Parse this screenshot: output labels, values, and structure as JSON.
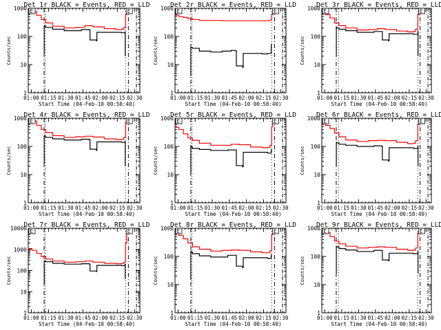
{
  "figure": {
    "title": "HESSI detector light curves, 3x3 panel grid"
  },
  "chart_data": [
    {
      "type": "line",
      "title": "Det 1r BLACK = Events, RED = LLD",
      "xlabel": "Start Time (04-Feb-10 00:58:40)",
      "ylabel": "Counts/sec",
      "yscale": "log",
      "ylim": [
        1,
        1000
      ],
      "yticks": [
        "1",
        "10",
        "100",
        "1000"
      ],
      "xlim_min": [
        -1.33,
        96
      ],
      "xticks": [
        "01:00",
        "01:15",
        "01:30",
        "01:45",
        "02:00",
        "02:15",
        "02:30"
      ],
      "xtick_min": [
        1.33,
        16.33,
        31.33,
        46.33,
        61.33,
        76.33,
        91.33
      ],
      "markers": {
        "dashdot": [
          12.5,
          86
        ],
        "dotted": [
          13.5,
          83.5
        ],
        "dashdot_right": 93
      },
      "annotations": [
        "E",
        "E"
      ],
      "series": [
        {
          "name": "LLD",
          "color": "#ff0000",
          "x": [
            -1.33,
            2,
            6,
            10,
            14,
            20,
            30,
            40,
            48,
            55,
            65,
            75,
            80,
            82,
            83.5,
            84.5
          ],
          "y": [
            1000,
            760,
            560,
            400,
            300,
            230,
            200,
            210,
            240,
            220,
            190,
            175,
            180,
            210,
            600,
            1000
          ]
        },
        {
          "name": "Events",
          "color": "#000000",
          "x": [
            12.5,
            12.6,
            13,
            14,
            20,
            30,
            45,
            52,
            52.5,
            58,
            58.5,
            80,
            83,
            83.2
          ],
          "y": [
            25,
            240,
            230,
            210,
            180,
            160,
            175,
            170,
            75,
            70,
            140,
            135,
            145,
            20
          ]
        }
      ]
    },
    {
      "type": "line",
      "title": "Det 2r BLACK = Events, RED = LLD",
      "xlabel": "Start Time (04-Feb-10 00:58:40)",
      "ylabel": "Counts/sec",
      "yscale": "log",
      "ylim": [
        1,
        1000
      ],
      "yticks": [
        "1",
        "10",
        "100",
        "1000"
      ],
      "xlim_min": [
        -1.33,
        96
      ],
      "xticks": [
        "01:00",
        "01:15",
        "01:30",
        "01:45",
        "02:00",
        "02:15",
        "02:30"
      ],
      "xtick_min": [
        1.33,
        16.33,
        31.33,
        46.33,
        61.33,
        76.33,
        91.33
      ],
      "markers": {
        "dashdot": [
          12.5,
          86
        ],
        "dotted": [
          13.5,
          83.5
        ],
        "dashdot_right": 93
      },
      "annotations": [
        "E",
        "E"
      ],
      "series": [
        {
          "name": "LLD",
          "color": "#ff0000",
          "x": [
            -1.33,
            2,
            6,
            10,
            14,
            20,
            40,
            60,
            80,
            82,
            83.5,
            84.5
          ],
          "y": [
            560,
            500,
            470,
            430,
            400,
            370,
            360,
            360,
            360,
            380,
            600,
            1000
          ]
        },
        {
          "name": "Events",
          "color": "#000000",
          "x": [
            12.2,
            12.5,
            13,
            14,
            20,
            30,
            40,
            48,
            52,
            52.5,
            58,
            58.5,
            75,
            80,
            83,
            83.2
          ],
          "y": [
            4,
            40,
            40,
            38,
            30,
            28,
            30,
            32,
            30,
            9,
            8,
            25,
            24,
            25,
            40,
            55
          ]
        }
      ]
    },
    {
      "type": "line",
      "title": "Det 3r BLACK = Events, RED = LLD",
      "xlabel": "Start Time (04-Feb-10 00:58:40)",
      "ylabel": "Counts/sec",
      "yscale": "log",
      "ylim": [
        1,
        1000
      ],
      "yticks": [
        "1",
        "10",
        "100",
        "1000"
      ],
      "xlim_min": [
        -1.33,
        96
      ],
      "xticks": [
        "01:00",
        "01:15",
        "01:30",
        "01:45",
        "02:00",
        "02:15",
        "02:30"
      ],
      "xtick_min": [
        1.33,
        16.33,
        31.33,
        46.33,
        61.33,
        76.33,
        91.33
      ],
      "markers": {
        "dashdot": [
          11.5,
          86
        ],
        "dotted": [
          13.5,
          84
        ],
        "dashdot_right": 93
      },
      "annotations": [
        "E",
        "E"
      ],
      "series": [
        {
          "name": "LLD",
          "color": "#ff0000",
          "x": [
            -1.33,
            2,
            6,
            10,
            14,
            20,
            30,
            40,
            48,
            55,
            65,
            75,
            80,
            82,
            84,
            85
          ],
          "y": [
            700,
            600,
            450,
            300,
            240,
            200,
            170,
            175,
            190,
            175,
            155,
            145,
            150,
            180,
            600,
            1000
          ]
        },
        {
          "name": "Events",
          "color": "#000000",
          "x": [
            11.5,
            11.6,
            12,
            14,
            20,
            30,
            45,
            52,
            52.5,
            58,
            58.5,
            80,
            84,
            84.2
          ],
          "y": [
            20,
            210,
            200,
            180,
            160,
            140,
            150,
            150,
            75,
            70,
            125,
            120,
            150,
            20
          ]
        }
      ]
    },
    {
      "type": "line",
      "title": "Det 4r BLACK = Events, RED = LLD",
      "xlabel": "Start Time (04-Feb-10 00:58:40)",
      "ylabel": "Counts/sec",
      "yscale": "log",
      "ylim": [
        1,
        1000
      ],
      "yticks": [
        "1",
        "10",
        "100",
        "1000"
      ],
      "xlim_min": [
        -1.33,
        96
      ],
      "xticks": [
        "01:00",
        "01:15",
        "01:30",
        "01:45",
        "02:00",
        "02:15",
        "02:30"
      ],
      "xtick_min": [
        1.33,
        16.33,
        31.33,
        46.33,
        61.33,
        76.33,
        91.33
      ],
      "markers": {
        "dashdot": [
          12.5,
          86
        ],
        "dotted": [
          13.5,
          83.5
        ],
        "dashdot_right": 93
      },
      "annotations": [
        "E",
        "E"
      ],
      "series": [
        {
          "name": "LLD",
          "color": "#ff0000",
          "x": [
            -1.33,
            2,
            6,
            10,
            14,
            20,
            30,
            40,
            48,
            55,
            65,
            75,
            80,
            82,
            83.5,
            84.5
          ],
          "y": [
            1000,
            800,
            560,
            400,
            310,
            240,
            210,
            220,
            230,
            215,
            185,
            175,
            180,
            210,
            700,
            1000
          ]
        },
        {
          "name": "Events",
          "color": "#000000",
          "x": [
            12.5,
            12.6,
            13,
            14,
            20,
            30,
            45,
            52,
            52.5,
            58,
            58.5,
            80,
            83,
            83.2
          ],
          "y": [
            25,
            240,
            230,
            210,
            185,
            170,
            180,
            175,
            80,
            72,
            145,
            140,
            150,
            20
          ]
        }
      ]
    },
    {
      "type": "line",
      "title": "Det 5r BLACK = Events, RED = LLD",
      "xlabel": "Start Time (04-Feb-10 00:58:40)",
      "ylabel": "Counts/sec",
      "yscale": "log",
      "ylim": [
        1,
        1000
      ],
      "yticks": [
        "1",
        "10",
        "100",
        "1000"
      ],
      "xlim_min": [
        -1.33,
        96
      ],
      "xticks": [
        "01:00",
        "01:15",
        "01:30",
        "01:45",
        "02:00",
        "02:15",
        "02:30"
      ],
      "xtick_min": [
        1.33,
        16.33,
        31.33,
        46.33,
        61.33,
        76.33,
        91.33
      ],
      "markers": {
        "dashdot": [
          12.5,
          86
        ],
        "dotted": [
          13.5,
          83.5
        ],
        "dashdot_right": 93
      },
      "annotations": [
        "E",
        "E"
      ],
      "series": [
        {
          "name": "LLD",
          "color": "#ff0000",
          "x": [
            -1.33,
            2,
            6,
            10,
            14,
            20,
            30,
            40,
            48,
            55,
            65,
            75,
            80,
            82,
            83.5,
            84.5
          ],
          "y": [
            480,
            400,
            280,
            200,
            165,
            130,
            110,
            110,
            120,
            115,
            95,
            90,
            92,
            110,
            500,
            1000
          ]
        },
        {
          "name": "Events",
          "color": "#000000",
          "x": [
            12.2,
            12.5,
            13,
            14,
            20,
            30,
            45,
            52,
            52.5,
            58,
            58.5,
            80,
            83,
            83.2
          ],
          "y": [
            12,
            100,
            95,
            85,
            78,
            72,
            75,
            75,
            21,
            19,
            62,
            58,
            65,
            80
          ]
        }
      ]
    },
    {
      "type": "line",
      "title": "Det 6r BLACK = Events, RED = LLD",
      "xlabel": "Start Time (04-Feb-10 00:58:40)",
      "ylabel": "Counts/sec",
      "yscale": "log",
      "ylim": [
        1,
        1000
      ],
      "yticks": [
        "1",
        "10",
        "100",
        "1000"
      ],
      "xlim_min": [
        -1.33,
        96
      ],
      "xticks": [
        "01:00",
        "01:15",
        "01:30",
        "01:45",
        "02:00",
        "02:15",
        "02:30"
      ],
      "xtick_min": [
        1.33,
        16.33,
        31.33,
        46.33,
        61.33,
        76.33,
        91.33
      ],
      "markers": {
        "dashdot": [
          11.5,
          86
        ],
        "dotted": [
          13.5,
          84
        ],
        "dashdot_right": 93
      },
      "annotations": [
        "E",
        "E"
      ],
      "series": [
        {
          "name": "LLD",
          "color": "#ff0000",
          "x": [
            -1.33,
            2,
            6,
            10,
            14,
            20,
            30,
            40,
            48,
            55,
            65,
            75,
            80,
            82,
            84,
            85
          ],
          "y": [
            650,
            560,
            430,
            300,
            220,
            170,
            150,
            160,
            165,
            160,
            140,
            125,
            130,
            160,
            600,
            1000
          ]
        },
        {
          "name": "Events",
          "color": "#000000",
          "x": [
            11.5,
            11.6,
            12,
            14,
            20,
            30,
            45,
            52,
            52.5,
            58,
            58.5,
            80,
            84,
            84.2
          ],
          "y": [
            20,
            140,
            135,
            120,
            110,
            100,
            105,
            100,
            33,
            30,
            90,
            85,
            105,
            20
          ]
        }
      ]
    },
    {
      "type": "line",
      "title": "Det 7r BLACK = Events, RED = LLD",
      "xlabel": "Start Time (04-Feb-10 00:58:40)",
      "ylabel": "Counts/sec",
      "yscale": "log",
      "ylim": [
        1,
        10000
      ],
      "yticks": [
        "1",
        "10",
        "100",
        "1000",
        "10000"
      ],
      "xlim_min": [
        -1.33,
        96
      ],
      "xticks": [
        "01:00",
        "01:15",
        "01:30",
        "01:45",
        "02:00",
        "02:15",
        "02:30"
      ],
      "xtick_min": [
        1.33,
        16.33,
        31.33,
        46.33,
        61.33,
        76.33,
        91.33
      ],
      "markers": {
        "dashdot": [
          12.5,
          86
        ],
        "dotted": [
          13.5,
          83.5
        ],
        "dashdot_right": 93
      },
      "annotations": [
        "E",
        "E"
      ],
      "series": [
        {
          "name": "LLD",
          "color": "#ff0000",
          "x": [
            -1.33,
            2,
            6,
            10,
            14,
            20,
            30,
            40,
            48,
            55,
            65,
            75,
            80,
            82,
            83.5,
            84.5,
            85.5,
            90
          ],
          "y": [
            1100,
            900,
            650,
            450,
            350,
            280,
            250,
            260,
            280,
            250,
            220,
            210,
            215,
            250,
            2000,
            8000,
            10000,
            10000
          ]
        },
        {
          "name": "Events",
          "color": "#000000",
          "x": [
            12.5,
            12.6,
            13,
            14,
            20,
            30,
            45,
            52,
            52.5,
            58,
            58.5,
            80,
            83,
            83.2
          ],
          "y": [
            25,
            290,
            280,
            260,
            220,
            200,
            210,
            200,
            95,
            90,
            175,
            170,
            200,
            40
          ]
        }
      ]
    },
    {
      "type": "line",
      "title": "Det 8r BLACK = Events, RED = LLD",
      "xlabel": "Start Time (04-Feb-10 00:58:40)",
      "ylabel": "Counts/sec",
      "yscale": "log",
      "ylim": [
        1,
        1000
      ],
      "yticks": [
        "1",
        "10",
        "100",
        "1000"
      ],
      "xlim_min": [
        -1.33,
        96
      ],
      "xticks": [
        "01:00",
        "01:15",
        "01:30",
        "01:45",
        "02:00",
        "02:15",
        "02:30"
      ],
      "xtick_min": [
        1.33,
        16.33,
        31.33,
        46.33,
        61.33,
        76.33,
        91.33
      ],
      "markers": {
        "dashdot": [
          12.5,
          86
        ],
        "dotted": [
          13.5,
          83.5
        ],
        "dashdot_right": 93
      },
      "annotations": [
        "E",
        "E"
      ],
      "series": [
        {
          "name": "LLD",
          "color": "#ff0000",
          "x": [
            -1.33,
            2,
            6,
            10,
            14,
            20,
            30,
            40,
            48,
            55,
            65,
            75,
            80,
            82,
            83.5,
            84.5
          ],
          "y": [
            700,
            560,
            420,
            300,
            220,
            180,
            155,
            165,
            170,
            165,
            145,
            135,
            135,
            160,
            600,
            1000
          ]
        },
        {
          "name": "Events",
          "color": "#000000",
          "x": [
            12.2,
            12.5,
            13,
            14,
            20,
            30,
            45,
            52,
            52.5,
            58,
            58.5,
            80,
            83,
            83.2
          ],
          "y": [
            15,
            150,
            140,
            125,
            105,
            95,
            110,
            110,
            45,
            40,
            90,
            85,
            100,
            120
          ]
        }
      ]
    },
    {
      "type": "line",
      "title": "Det 9r BLACK = Events, RED = LLD",
      "xlabel": "Start Time (04-Feb-10 00:58:40)",
      "ylabel": "Counts/sec",
      "yscale": "log",
      "ylim": [
        1,
        1000
      ],
      "yticks": [
        "1",
        "10",
        "100",
        "1000"
      ],
      "xlim_min": [
        -1.33,
        96
      ],
      "xticks": [
        "01:00",
        "01:15",
        "01:30",
        "01:45",
        "02:00",
        "02:15",
        "02:30"
      ],
      "xtick_min": [
        1.33,
        16.33,
        31.33,
        46.33,
        61.33,
        76.33,
        91.33
      ],
      "markers": {
        "dashdot": [
          11.5,
          86
        ],
        "dotted": [
          13.5,
          84
        ],
        "dashdot_right": 93
      },
      "annotations": [
        "E",
        "E"
      ],
      "series": [
        {
          "name": "LLD",
          "color": "#ff0000",
          "x": [
            -1.33,
            2,
            6,
            10,
            14,
            20,
            30,
            40,
            48,
            55,
            65,
            75,
            80,
            82,
            84,
            85
          ],
          "y": [
            1000,
            700,
            500,
            350,
            280,
            230,
            200,
            210,
            220,
            210,
            180,
            165,
            170,
            200,
            700,
            1000
          ]
        },
        {
          "name": "Events",
          "color": "#000000",
          "x": [
            11.5,
            11.6,
            12,
            14,
            20,
            30,
            45,
            52,
            52.5,
            58,
            58.5,
            80,
            84,
            84.2
          ],
          "y": [
            25,
            230,
            220,
            190,
            170,
            150,
            165,
            160,
            75,
            70,
            130,
            125,
            150,
            25
          ]
        }
      ]
    }
  ]
}
